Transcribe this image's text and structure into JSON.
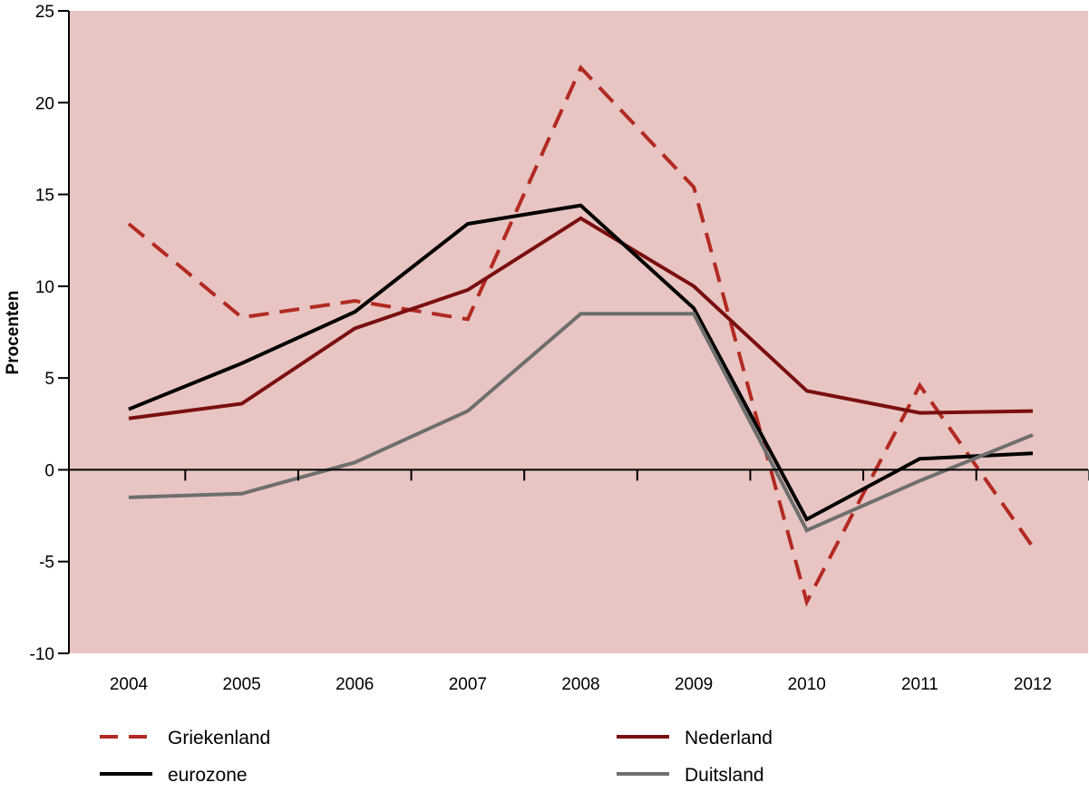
{
  "chart_data": {
    "type": "line",
    "title": "",
    "xlabel": "",
    "ylabel": "Procenten",
    "ylim": [
      -10,
      25
    ],
    "yticks": [
      -10,
      -5,
      0,
      5,
      10,
      15,
      20,
      25
    ],
    "categories": [
      "2004",
      "2005",
      "2006",
      "2007",
      "2008",
      "2009",
      "2010",
      "2011",
      "2012"
    ],
    "grid": false,
    "legend_position": "bottom",
    "background": "#e8c5c2",
    "series": [
      {
        "name": "Griekenland",
        "color": "#b22a22",
        "dash": true,
        "values": [
          13.4,
          8.3,
          9.2,
          8.2,
          21.9,
          15.4,
          -7.2,
          4.6,
          -4.2
        ]
      },
      {
        "name": "Nederland",
        "color": "#7a0f0f",
        "dash": false,
        "values": [
          2.8,
          3.6,
          7.7,
          9.8,
          13.7,
          10.0,
          4.3,
          3.1,
          3.2
        ]
      },
      {
        "name": "eurozone",
        "color": "#000000",
        "dash": false,
        "values": [
          3.3,
          5.8,
          8.6,
          13.4,
          14.4,
          8.8,
          -2.7,
          0.6,
          0.9
        ]
      },
      {
        "name": "Duitsland",
        "color": "#6e6e6e",
        "dash": false,
        "values": [
          -1.5,
          -1.3,
          0.4,
          3.2,
          8.5,
          8.5,
          -3.3,
          -0.6,
          1.9
        ]
      }
    ]
  }
}
